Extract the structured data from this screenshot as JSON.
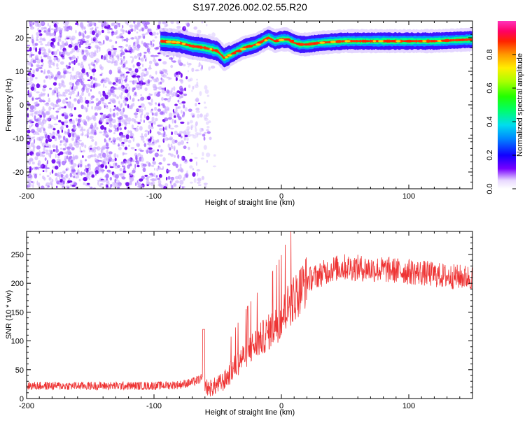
{
  "title": "S197.2026.002.02.55.R20",
  "colors": {
    "line": "#ee3333",
    "axis": "#000000"
  },
  "chart_data": [
    {
      "type": "heatmap",
      "name": "spectrogram",
      "xlabel": "Height of straight line (km)",
      "ylabel": "Frequency (Hz)",
      "xlim": [
        -200,
        150
      ],
      "ylim": [
        -25,
        25
      ],
      "x_ticks": [
        -200,
        -100,
        0,
        100
      ],
      "x_tick_labels": [
        "-200",
        "-100",
        "0",
        "100"
      ],
      "y_ticks": [
        -20,
        -10,
        0,
        10,
        20
      ],
      "y_tick_labels": [
        "-20",
        "-10",
        "0",
        "10",
        "20"
      ],
      "ridge": {
        "description": "dominant frequency ridge",
        "x": [
          -95,
          -80,
          -70,
          -60,
          -50,
          -45,
          -40,
          -35,
          -30,
          -20,
          -10,
          -5,
          0,
          5,
          10,
          15,
          20,
          30,
          50,
          80,
          100,
          120,
          150
        ],
        "y": [
          19,
          18.5,
          17.5,
          17,
          16,
          14,
          15,
          16,
          17,
          18,
          20,
          19,
          19.5,
          19.5,
          18.5,
          18,
          18,
          18.5,
          19,
          19,
          19,
          19,
          19.5
        ]
      },
      "noise_region_x": [
        -200,
        -50
      ],
      "colorbar": {
        "label": "Normalized spectral amplitude",
        "ticks": [
          0.0,
          0.2,
          0.4,
          0.6,
          0.8
        ],
        "tick_labels": [
          "0.0",
          "0.2",
          "0.4",
          "0.6",
          "0.8"
        ],
        "range": [
          0,
          1
        ]
      }
    },
    {
      "type": "line",
      "name": "snr",
      "xlabel": "Height of straight line (km)",
      "ylabel": "SNR (10 * v/v)",
      "xlim": [
        -200,
        150
      ],
      "ylim": [
        0,
        290
      ],
      "x_ticks": [
        -200,
        -100,
        0,
        100
      ],
      "x_tick_labels": [
        "-200",
        "-100",
        "0",
        "100"
      ],
      "y_ticks": [
        0,
        50,
        100,
        150,
        200,
        250
      ],
      "y_tick_labels": [
        "0",
        "50",
        "100",
        "150",
        "200",
        "250"
      ],
      "trend": {
        "x": [
          -200,
          -150,
          -100,
          -80,
          -70,
          -62,
          -60,
          -55,
          -45,
          -35,
          -25,
          -15,
          -5,
          0,
          5,
          10,
          15,
          20,
          30,
          40,
          50,
          70,
          90,
          110,
          130,
          150
        ],
        "y": [
          22,
          22,
          22,
          24,
          28,
          35,
          20,
          18,
          30,
          60,
          85,
          105,
          125,
          140,
          160,
          175,
          190,
          205,
          215,
          225,
          228,
          225,
          222,
          218,
          212,
          210
        ]
      },
      "noise_amplitude": 14
    }
  ]
}
